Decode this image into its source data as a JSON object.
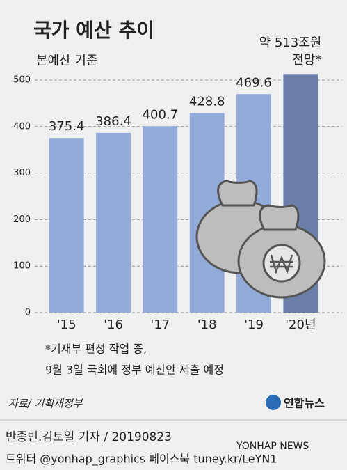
{
  "chart_data": {
    "type": "bar",
    "title": "국가 예산 추이",
    "subtitle": "본예산 기준",
    "categories": [
      "'15",
      "'16",
      "'17",
      "'18",
      "'19",
      "'20년"
    ],
    "values": [
      375.4,
      386.4,
      400.7,
      428.8,
      469.6,
      513
    ],
    "colors": [
      "#92abd9",
      "#92abd9",
      "#92abd9",
      "#92abd9",
      "#92abd9",
      "#6b7fa9"
    ],
    "ylim": [
      0,
      520
    ],
    "yticks": [
      0,
      100,
      200,
      300,
      400,
      500
    ],
    "grid": true,
    "annotation": [
      "약 513조원",
      "전망*"
    ],
    "footnote": [
      "*기재부 편성 작업 중,",
      "9월 3일 국회에 정부 예산안 제출 예정"
    ],
    "source": "자료/ 기획재정부",
    "logo": "연합뉴스",
    "watermark": "YONHAP NEWS",
    "credit": "반종빈.김토일 기자 / 20190823",
    "social": "트위터 @yonhap_graphics  페이스북 tuney.kr/LeYN1"
  }
}
